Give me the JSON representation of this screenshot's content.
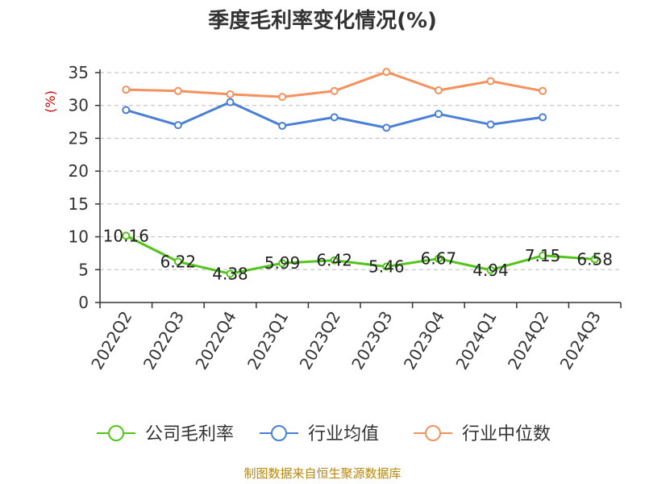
{
  "chart_data": {
    "type": "line",
    "title": "季度毛利率变化情况(%)",
    "ylabel": "(%)",
    "ylim": [
      0,
      35
    ],
    "yticks": [
      0,
      5,
      10,
      15,
      20,
      25,
      30,
      35
    ],
    "grid": true,
    "legend_position": "bottom",
    "categories": [
      "2022Q2",
      "2022Q3",
      "2022Q4",
      "2023Q1",
      "2023Q2",
      "2023Q3",
      "2023Q4",
      "2024Q1",
      "2024Q2",
      "2024Q3"
    ],
    "series": [
      {
        "name": "公司毛利率",
        "color": "#52c41a",
        "show_labels": true,
        "values": [
          10.16,
          6.22,
          4.38,
          5.99,
          6.42,
          5.46,
          6.67,
          4.94,
          7.15,
          6.58
        ]
      },
      {
        "name": "行业均值",
        "color": "#4a7fd6",
        "show_labels": false,
        "values": [
          29.3,
          27.0,
          30.5,
          26.9,
          28.2,
          26.6,
          28.7,
          27.1,
          28.2,
          null
        ]
      },
      {
        "name": "行业中位数",
        "color": "#f4915c",
        "show_labels": false,
        "values": [
          32.4,
          32.2,
          31.7,
          31.3,
          32.2,
          35.1,
          32.3,
          33.7,
          32.2,
          null
        ]
      }
    ],
    "source": "制图数据来自恒生聚源数据库"
  }
}
